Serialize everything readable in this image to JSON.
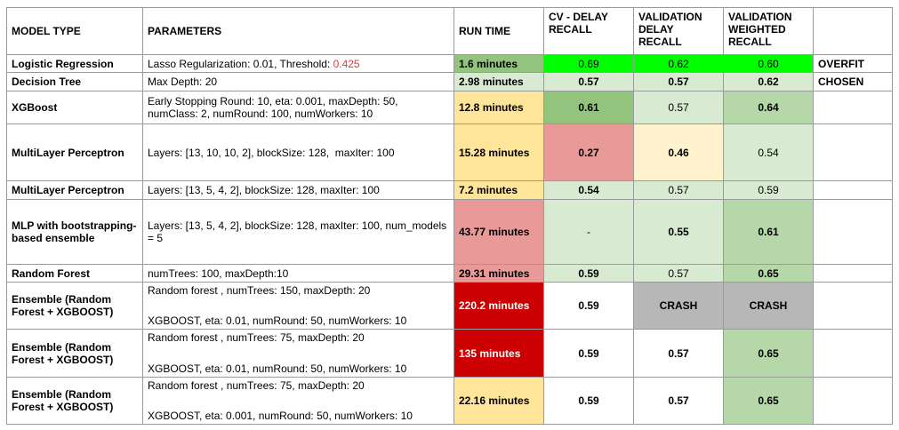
{
  "headers": {
    "model_type": "MODEL TYPE",
    "parameters": "PARAMETERS",
    "run_time": "RUN TIME",
    "cv_delay_recall": "CV - DELAY RECALL",
    "validation_delay_recall": "VALIDATION DELAY RECALL",
    "validation_weighted_recall": "VALIDATION WEIGHTED RECALL",
    "note": ""
  },
  "rows": [
    {
      "model": "Logistic Regression",
      "param_a": "Lasso Regularization: 0.01, Threshold: ",
      "param_threshold": "0.425",
      "run_time": "1.6 minutes",
      "cv": "0.69",
      "val_delay": "0.62",
      "val_weighted": "0.60",
      "note": "OVERFIT"
    },
    {
      "model": "Decision Tree",
      "params": "Max Depth: 20",
      "run_time": "2.98 minutes",
      "cv": "0.57",
      "val_delay": "0.57",
      "val_weighted": "0.62",
      "note": "CHOSEN"
    },
    {
      "model": "XGBoost",
      "params": "Early Stopping Round: 10, eta: 0.001, maxDepth: 50, numClass: 2, numRound: 100, numWorkers: 10",
      "run_time": "12.8 minutes",
      "cv": "0.61",
      "val_delay": "0.57",
      "val_weighted": "0.64",
      "note": ""
    },
    {
      "model": "MultiLayer Perceptron",
      "params": "Layers: [13, 10, 10, 2], blockSize: 128,  maxIter: 100",
      "run_time": "15.28 minutes",
      "cv": "0.27",
      "val_delay": "0.46",
      "val_weighted": "0.54",
      "note": ""
    },
    {
      "model": "MultiLayer Perceptron",
      "params": "Layers: [13, 5, 4, 2], blockSize: 128, maxIter: 100",
      "run_time": "7.2 minutes",
      "cv": "0.54",
      "val_delay": "0.57",
      "val_weighted": "0.59",
      "note": ""
    },
    {
      "model": "MLP with bootstrapping-based ensemble",
      "params": "Layers: [13, 5, 4, 2], blockSize: 128, maxIter: 100, num_models = 5",
      "run_time": "43.77 minutes",
      "cv": "-",
      "val_delay": "0.55",
      "val_weighted": "0.61",
      "note": ""
    },
    {
      "model": "Random Forest",
      "params": "numTrees: 100, maxDepth:10",
      "run_time": "29.31 minutes",
      "cv": "0.59",
      "val_delay": "0.57",
      "val_weighted": "0.65",
      "note": ""
    },
    {
      "model": "Ensemble (Random Forest + XGBOOST)",
      "param_line1": "Random forest , numTrees: 150, maxDepth: 20",
      "param_line2": "XGBOOST, eta: 0.01, numRound: 50, numWorkers: 10",
      "run_time": "220.2 minutes",
      "cv": "0.59",
      "val_delay": "CRASH",
      "val_weighted": "CRASH",
      "note": ""
    },
    {
      "model": "Ensemble (Random Forest + XGBOOST)",
      "param_line1": "Random forest , numTrees: 75, maxDepth: 20",
      "param_line2": "XGBOOST, eta: 0.01, numRound: 50, numWorkers: 10",
      "run_time": "135 minutes",
      "cv": "0.59",
      "val_delay": "0.57",
      "val_weighted": "0.65",
      "note": ""
    },
    {
      "model": "Ensemble (Random Forest + XGBOOST)",
      "param_line1": "Random forest , numTrees: 75, maxDepth: 20",
      "param_line2": "XGBOOST, eta: 0.001, numRound: 50, numWorkers: 10",
      "run_time": "22.16 minutes",
      "cv": "0.59",
      "val_delay": "0.57",
      "val_weighted": "0.65",
      "note": ""
    }
  ],
  "colors": {
    "threshold_text": "#e53935",
    "light_green": "#d9ead3",
    "mid_green": "#b6d7a8",
    "dark_green": "#93c47d",
    "bright_green": "#00ff00",
    "light_yellow": "#fff2cc",
    "yellow": "#ffe599",
    "pink": "#ea9999",
    "red": "#cc0000",
    "gray": "#b7b7b7"
  }
}
